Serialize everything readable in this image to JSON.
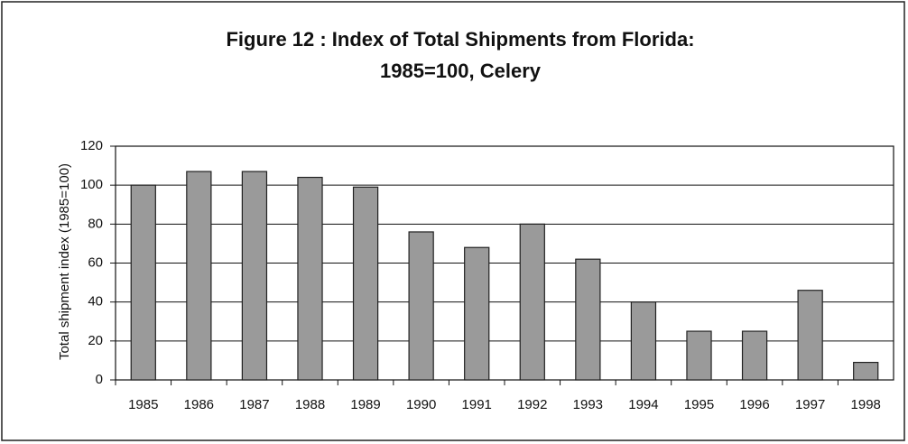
{
  "chart_data": {
    "type": "bar",
    "title": "Figure  12 : Index of Total Shipments from Florida:",
    "subtitle": "1985=100, Celery",
    "y_label": "Total shipment index (1985=100)",
    "categories": [
      "1985",
      "1986",
      "1987",
      "1988",
      "1989",
      "1990",
      "1991",
      "1992",
      "1993",
      "1994",
      "1995",
      "1996",
      "1997",
      "1998"
    ],
    "values": [
      100,
      107,
      107,
      104,
      99,
      76,
      68,
      80,
      62,
      40,
      25,
      25,
      46,
      9
    ],
    "color": "#9a9a9a",
    "ylim": [
      0,
      120
    ],
    "yticks": [
      0,
      20,
      40,
      60,
      80,
      100,
      120
    ],
    "grid": true
  }
}
